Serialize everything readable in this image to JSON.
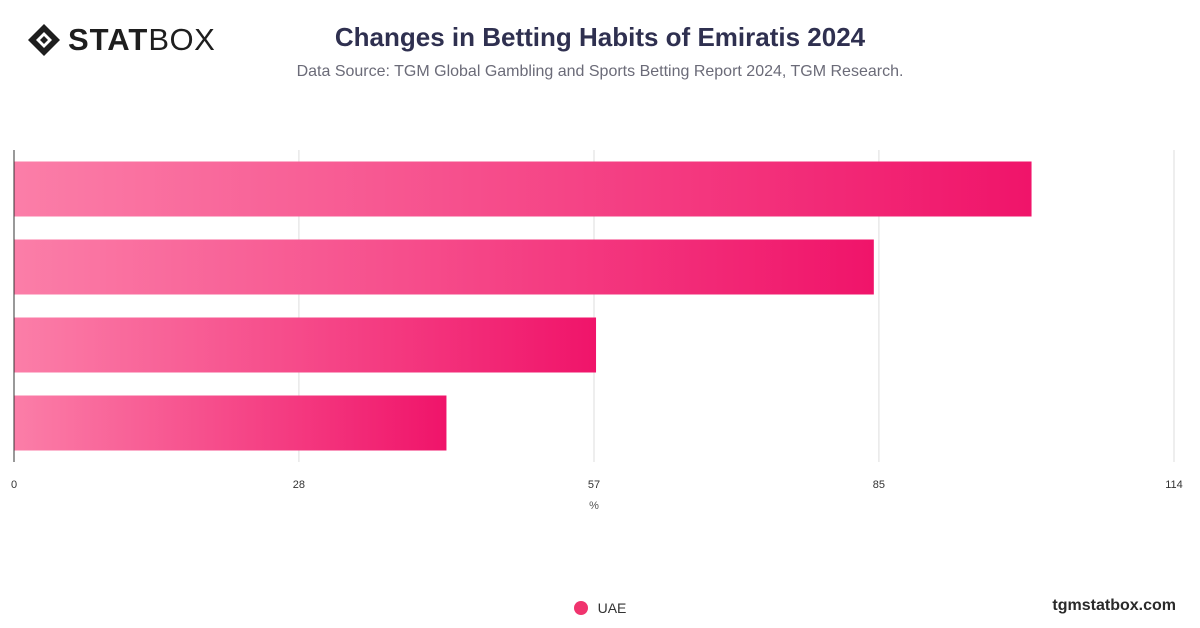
{
  "brand": {
    "logo_bold": "STAT",
    "logo_light": "BOX",
    "site": "tgmstatbox.com"
  },
  "header": {
    "title": "Changes in Betting Habits of Emiratis 2024",
    "subtitle": "Data Source: TGM Global Gambling and Sports Betting Report 2024, TGM Research."
  },
  "legend": {
    "items": [
      {
        "label": "UAE",
        "color": "#f0346e"
      }
    ]
  },
  "colors": {
    "bar_start": "#fb7ea8",
    "bar_end": "#f0146a",
    "grid": "#dddddd",
    "axis": "#333333",
    "tick": "#333333"
  },
  "chart_data": {
    "type": "bar",
    "orientation": "horizontal",
    "categories": [
      "",
      "",
      "",
      ""
    ],
    "series": [
      {
        "name": "UAE",
        "values": [
          100,
          84.5,
          57.2,
          42.5
        ]
      }
    ],
    "xlabel": "%",
    "ylabel": "",
    "xlim": [
      0,
      114
    ],
    "xticks": [
      0,
      28,
      57,
      85,
      114
    ],
    "grid": true,
    "legend_position": "bottom"
  }
}
